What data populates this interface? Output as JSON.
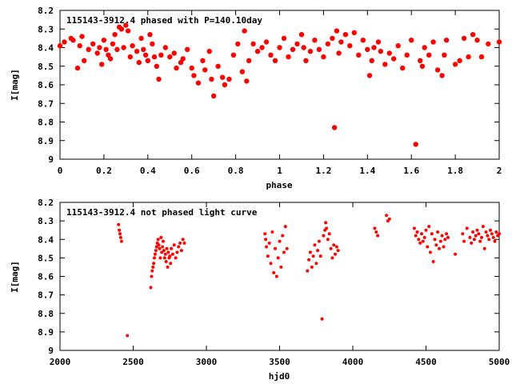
{
  "chart_data": [
    {
      "type": "scatter",
      "title": "115143-3912.4 phased with P=140.10day",
      "xlabel": "phase",
      "ylabel": "I[mag]",
      "xlim": [
        0,
        2
      ],
      "ylim": [
        9,
        8.2
      ],
      "y_inverted": true,
      "x_ticks": [
        0,
        0.2,
        0.4,
        0.6,
        0.8,
        1,
        1.2,
        1.4,
        1.6,
        1.8,
        2
      ],
      "x_tick_labels": [
        "0",
        "0.2",
        "0.4",
        "0.6",
        "0.8",
        "1",
        "1.2",
        "1.4",
        "1.6",
        "1.8",
        "2"
      ],
      "y_ticks": [
        8.2,
        8.3,
        8.4,
        8.5,
        8.6,
        8.7,
        8.8,
        8.9,
        9
      ],
      "y_tick_labels": [
        "8.2",
        "8.3",
        "8.4",
        "8.5",
        "8.6",
        "8.7",
        "8.8",
        "8.9",
        "9"
      ],
      "grid": false,
      "marker_color": "#ff0000",
      "marker_size": 3.2,
      "series": [
        {
          "x": [
            0.0,
            0.02,
            0.05,
            0.06,
            0.08,
            0.09,
            0.1,
            0.11,
            0.13,
            0.15,
            0.17,
            0.18,
            0.19,
            0.2,
            0.21,
            0.22,
            0.23,
            0.24,
            0.25,
            0.26,
            0.27,
            0.28,
            0.29,
            0.3,
            0.31,
            0.32,
            0.33,
            0.35,
            0.36,
            0.37,
            0.38,
            0.39,
            0.4,
            0.41,
            0.42,
            0.43,
            0.44,
            0.45,
            0.46,
            0.48,
            0.5,
            0.52,
            0.53,
            0.55,
            0.56,
            0.58,
            0.6,
            0.61,
            0.63,
            0.65,
            0.66,
            0.68,
            0.69,
            0.7,
            0.72,
            0.74,
            0.75,
            0.77,
            0.79,
            0.81,
            0.83,
            0.84,
            0.85,
            0.86,
            0.88,
            0.9,
            0.92,
            0.94,
            0.96,
            0.98,
            1.0,
            1.02,
            1.04,
            1.06,
            1.08,
            1.1,
            1.11,
            1.12,
            1.14,
            1.16,
            1.18,
            1.2,
            1.22,
            1.24,
            1.25,
            1.26,
            1.27,
            1.28,
            1.3,
            1.32,
            1.34,
            1.36,
            1.38,
            1.4,
            1.41,
            1.42,
            1.43,
            1.45,
            1.46,
            1.48,
            1.5,
            1.52,
            1.54,
            1.56,
            1.58,
            1.6,
            1.62,
            1.64,
            1.65,
            1.66,
            1.68,
            1.7,
            1.72,
            1.74,
            1.75,
            1.76,
            1.8,
            1.82,
            1.84,
            1.86,
            1.88,
            1.9,
            1.92,
            1.95,
            2.0
          ],
          "y": [
            8.39,
            8.37,
            8.35,
            8.36,
            8.51,
            8.39,
            8.34,
            8.47,
            8.41,
            8.38,
            8.43,
            8.4,
            8.49,
            8.36,
            8.41,
            8.44,
            8.46,
            8.38,
            8.33,
            8.41,
            8.29,
            8.3,
            8.4,
            8.28,
            8.31,
            8.45,
            8.39,
            8.42,
            8.48,
            8.35,
            8.41,
            8.44,
            8.47,
            8.33,
            8.38,
            8.45,
            8.5,
            8.57,
            8.44,
            8.4,
            8.45,
            8.43,
            8.51,
            8.48,
            8.46,
            8.41,
            8.51,
            8.55,
            8.59,
            8.47,
            8.52,
            8.42,
            8.57,
            8.66,
            8.5,
            8.56,
            8.6,
            8.57,
            8.44,
            8.38,
            8.53,
            8.31,
            8.58,
            8.47,
            8.38,
            8.42,
            8.4,
            8.37,
            8.44,
            8.47,
            8.4,
            8.35,
            8.45,
            8.41,
            8.38,
            8.33,
            8.4,
            8.47,
            8.42,
            8.36,
            8.41,
            8.45,
            8.38,
            8.35,
            8.83,
            8.31,
            8.43,
            8.37,
            8.33,
            8.39,
            8.32,
            8.44,
            8.36,
            8.41,
            8.55,
            8.47,
            8.4,
            8.37,
            8.42,
            8.49,
            8.43,
            8.46,
            8.39,
            8.51,
            8.44,
            8.36,
            8.92,
            8.47,
            8.5,
            8.4,
            8.44,
            8.37,
            8.52,
            8.55,
            8.44,
            8.36,
            8.49,
            8.47,
            8.35,
            8.45,
            8.33,
            8.36,
            8.45,
            8.38,
            8.37
          ]
        }
      ]
    },
    {
      "type": "scatter",
      "title": "115143-3912.4 not phased light curve",
      "xlabel": "hjd0",
      "ylabel": "I[mag]",
      "xlim": [
        2000,
        5000
      ],
      "ylim": [
        9,
        8.2
      ],
      "y_inverted": true,
      "x_ticks": [
        2000,
        2500,
        3000,
        3500,
        4000,
        4500,
        5000
      ],
      "x_tick_labels": [
        "2000",
        "2500",
        "3000",
        "3500",
        "4000",
        "4500",
        "5000"
      ],
      "y_ticks": [
        8.2,
        8.3,
        8.4,
        8.5,
        8.6,
        8.7,
        8.8,
        8.9,
        9
      ],
      "y_tick_labels": [
        "8.2",
        "8.3",
        "8.4",
        "8.5",
        "8.6",
        "8.7",
        "8.8",
        "8.9",
        "9"
      ],
      "grid": false,
      "marker_color": "#ff0000",
      "marker_size": 2.0,
      "series": [
        {
          "x": [
            2400,
            2405,
            2410,
            2415,
            2420,
            2460,
            2620,
            2625,
            2630,
            2635,
            2640,
            2645,
            2650,
            2655,
            2660,
            2665,
            2670,
            2675,
            2680,
            2685,
            2690,
            2695,
            2700,
            2705,
            2710,
            2715,
            2720,
            2725,
            2730,
            2735,
            2740,
            2745,
            2750,
            2755,
            2760,
            2770,
            2780,
            2790,
            2800,
            2810,
            2820,
            2830,
            2840,
            2850,
            3400,
            3405,
            3410,
            3420,
            3430,
            3440,
            3450,
            3460,
            3470,
            3480,
            3490,
            3500,
            3510,
            3520,
            3530,
            3540,
            3550,
            3690,
            3700,
            3710,
            3720,
            3730,
            3740,
            3750,
            3760,
            3770,
            3780,
            3790,
            3800,
            3810,
            3815,
            3820,
            3830,
            3840,
            3850,
            3860,
            3870,
            3880,
            3890,
            3900,
            4150,
            4160,
            4170,
            4230,
            4240,
            4250,
            4420,
            4430,
            4440,
            4450,
            4460,
            4470,
            4480,
            4490,
            4500,
            4510,
            4520,
            4530,
            4540,
            4550,
            4560,
            4570,
            4580,
            4590,
            4600,
            4610,
            4620,
            4630,
            4640,
            4650,
            4700,
            4750,
            4760,
            4780,
            4800,
            4810,
            4820,
            4830,
            4840,
            4850,
            4860,
            4870,
            4880,
            4890,
            4900,
            4910,
            4920,
            4930,
            4940,
            4950,
            4960,
            4970,
            4980,
            4990,
            5000
          ],
          "y": [
            8.32,
            8.35,
            8.37,
            8.39,
            8.41,
            8.92,
            8.66,
            8.6,
            8.57,
            8.55,
            8.53,
            8.5,
            8.48,
            8.46,
            8.44,
            8.42,
            8.4,
            8.43,
            8.45,
            8.5,
            8.39,
            8.47,
            8.44,
            8.41,
            8.46,
            8.5,
            8.48,
            8.52,
            8.45,
            8.55,
            8.47,
            8.5,
            8.49,
            8.53,
            8.45,
            8.48,
            8.43,
            8.5,
            8.47,
            8.44,
            8.42,
            8.46,
            8.4,
            8.42,
            8.37,
            8.4,
            8.44,
            8.49,
            8.42,
            8.53,
            8.36,
            8.58,
            8.45,
            8.6,
            8.5,
            8.41,
            8.55,
            8.38,
            8.47,
            8.33,
            8.45,
            8.57,
            8.51,
            8.47,
            8.55,
            8.49,
            8.43,
            8.53,
            8.46,
            8.41,
            8.49,
            8.83,
            8.38,
            8.35,
            8.31,
            8.34,
            8.4,
            8.37,
            8.45,
            8.5,
            8.43,
            8.48,
            8.44,
            8.46,
            8.34,
            8.36,
            8.38,
            8.27,
            8.3,
            8.29,
            8.34,
            8.38,
            8.36,
            8.4,
            8.42,
            8.37,
            8.41,
            8.39,
            8.35,
            8.44,
            8.33,
            8.47,
            8.37,
            8.52,
            8.4,
            8.43,
            8.36,
            8.45,
            8.41,
            8.38,
            8.44,
            8.4,
            8.37,
            8.39,
            8.48,
            8.37,
            8.41,
            8.34,
            8.39,
            8.42,
            8.36,
            8.4,
            8.38,
            8.35,
            8.37,
            8.41,
            8.39,
            8.33,
            8.45,
            8.36,
            8.38,
            8.4,
            8.35,
            8.37,
            8.39,
            8.41,
            8.36,
            8.38,
            8.37
          ]
        }
      ]
    }
  ]
}
